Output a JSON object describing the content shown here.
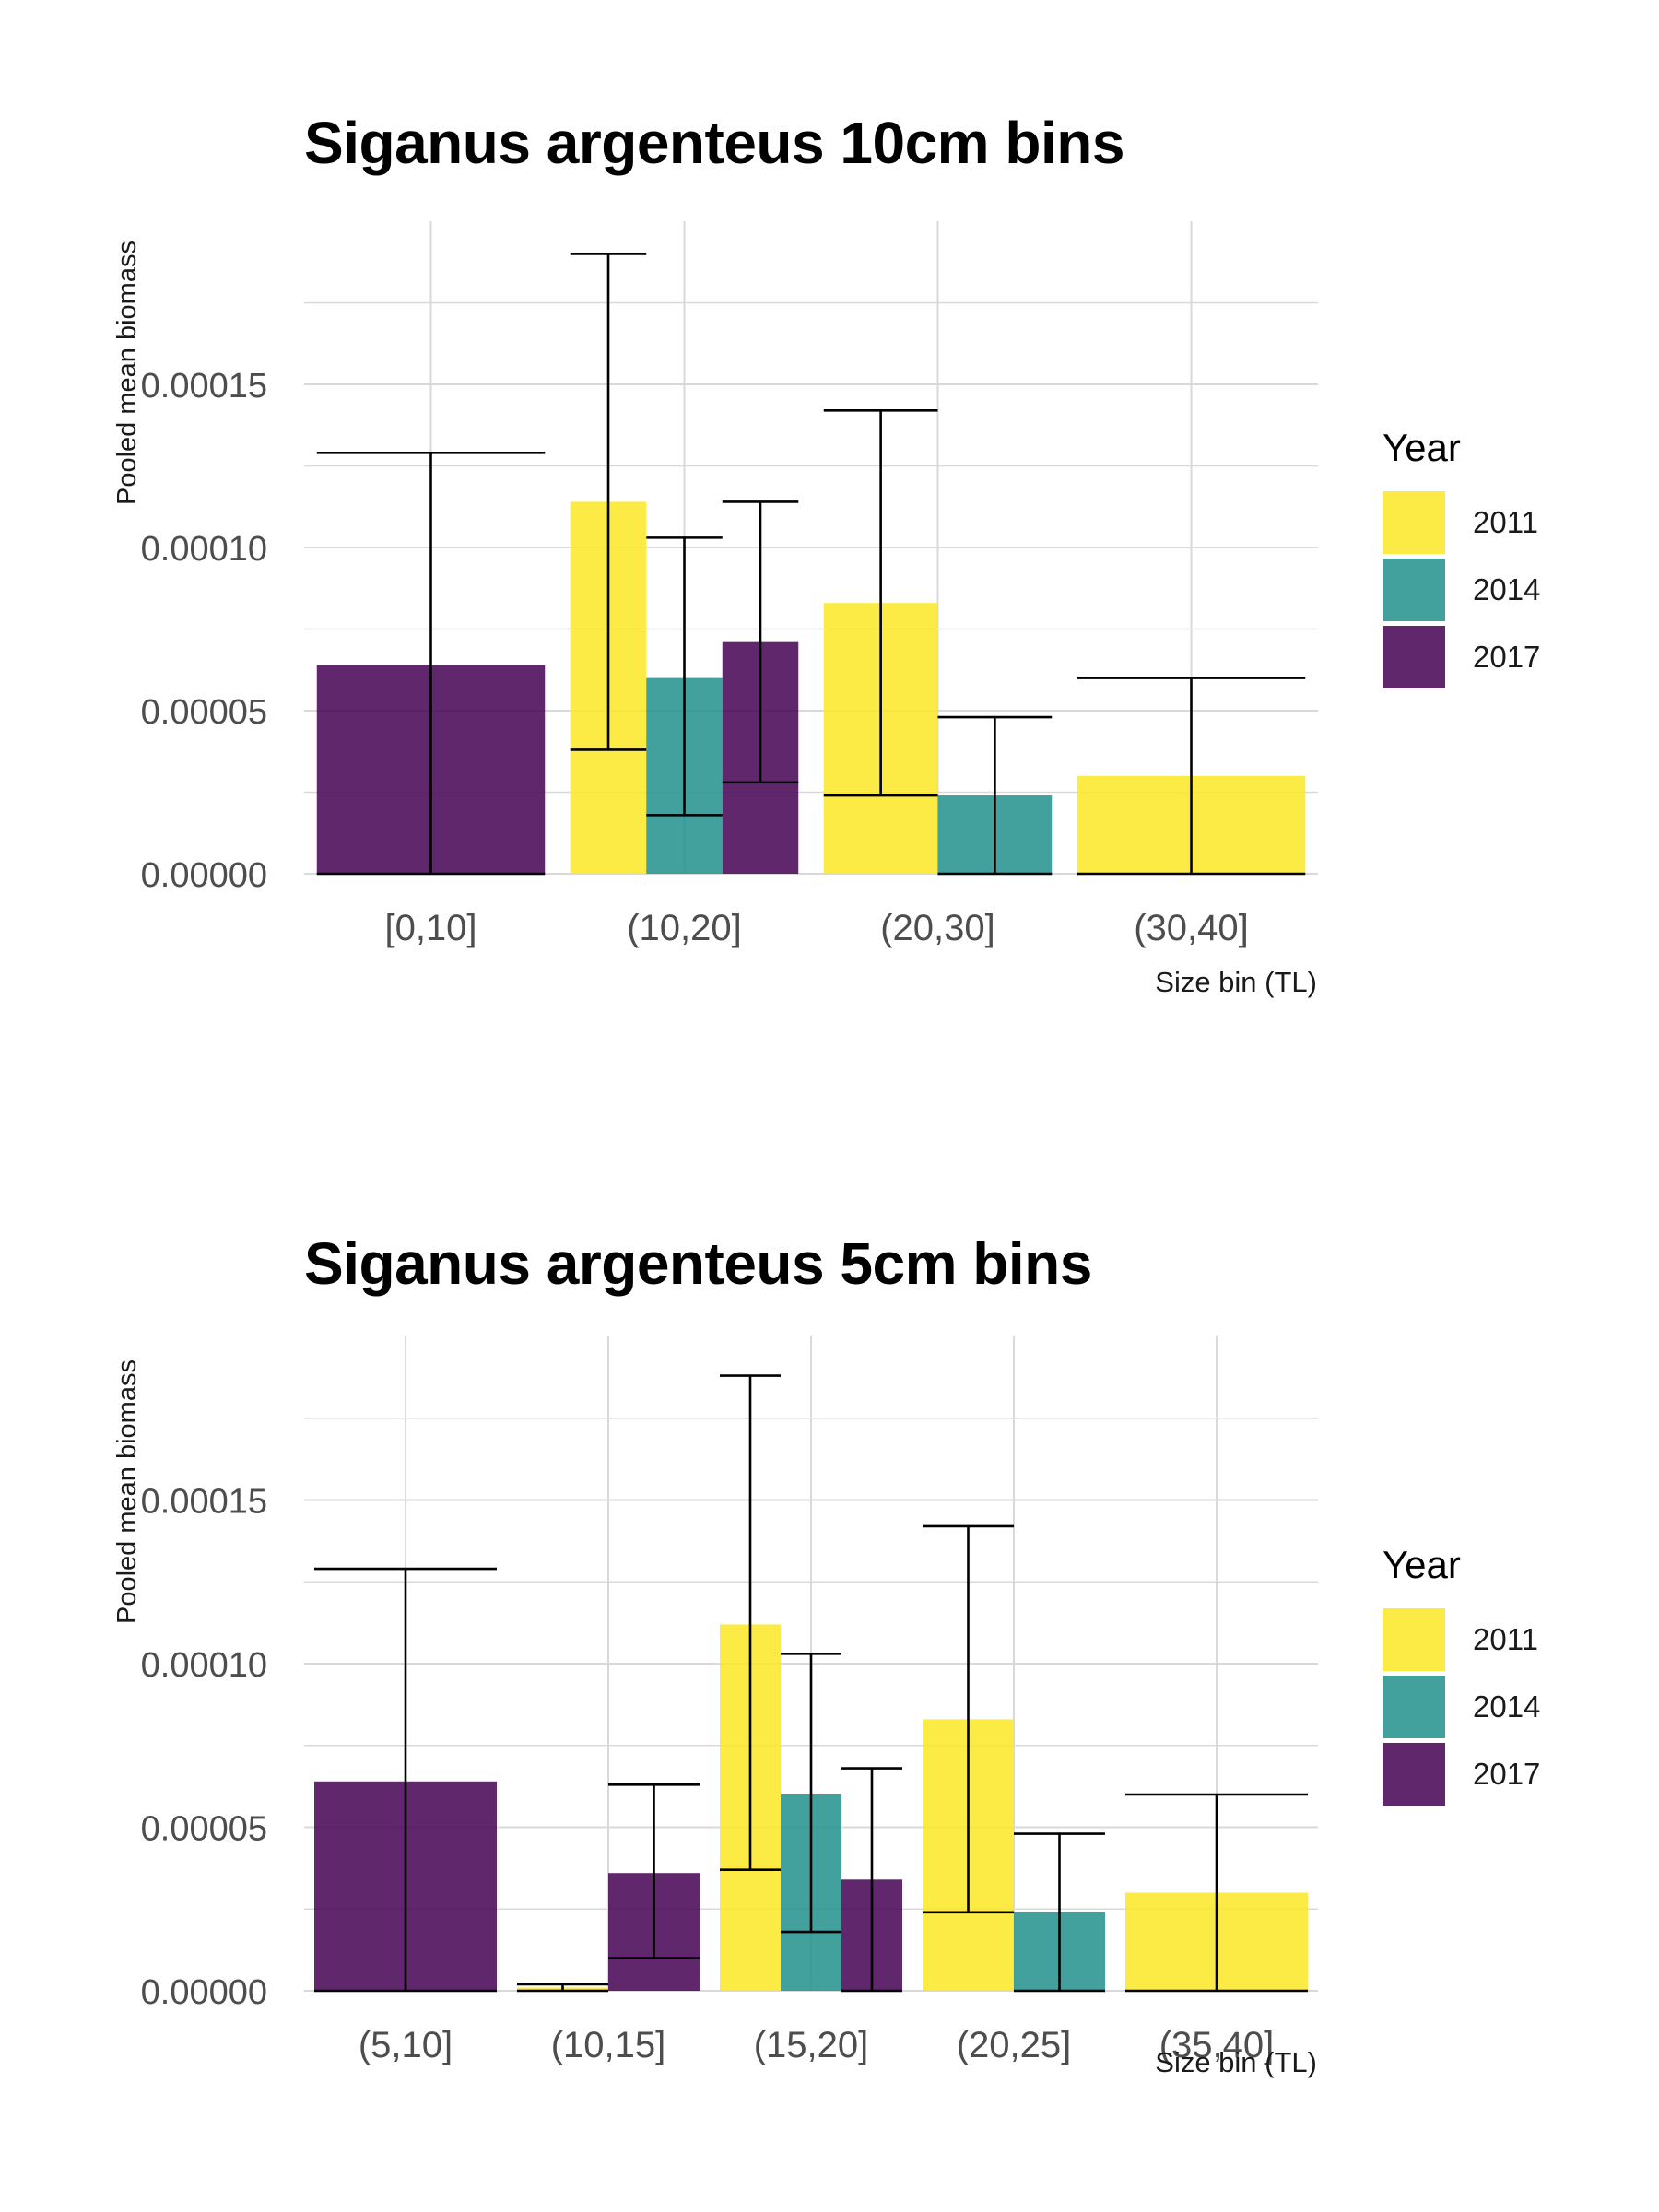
{
  "legend": {
    "title": "Year",
    "items": [
      {
        "label": "2011",
        "color": "#FDE725"
      },
      {
        "label": "2014",
        "color": "#21908C"
      },
      {
        "label": "2017",
        "color": "#440154"
      }
    ]
  },
  "chart_data": [
    {
      "type": "bar",
      "title": "Siganus argenteus 10cm bins",
      "xlabel": "Size bin (TL)",
      "ylabel": "Pooled mean biomass",
      "categories": [
        "[0,10]",
        "(10,20]",
        "(20,30]",
        "(30,40]"
      ],
      "ylim": [
        0,
        0.0002
      ],
      "yticks": [
        "0.00000",
        "0.00005",
        "0.00010",
        "0.00015"
      ],
      "grid": true,
      "legend_position": "right",
      "series": [
        {
          "name": "2011",
          "values": [
            null,
            0.000114,
            8.3e-05,
            3e-05
          ],
          "error_low": [
            null,
            3.8e-05,
            2.4e-05,
            0.0
          ],
          "error_high": [
            null,
            0.00019,
            0.000142,
            6e-05
          ]
        },
        {
          "name": "2014",
          "values": [
            null,
            6e-05,
            2.4e-05,
            null
          ],
          "error_low": [
            null,
            1.8e-05,
            0.0,
            null
          ],
          "error_high": [
            null,
            0.000103,
            4.8e-05,
            null
          ]
        },
        {
          "name": "2017",
          "values": [
            6.4e-05,
            7.1e-05,
            null,
            null
          ],
          "error_low": [
            0.0,
            2.8e-05,
            null,
            null
          ],
          "error_high": [
            0.000129,
            0.000114,
            null,
            null
          ]
        }
      ]
    },
    {
      "type": "bar",
      "title": "Siganus argenteus 5cm bins",
      "xlabel": "Size bin (TL)",
      "ylabel": "Pooled mean biomass",
      "categories": [
        "(5,10]",
        "(10,15]",
        "(15,20]",
        "(20,25]",
        "(35,40]"
      ],
      "ylim": [
        0,
        0.0002
      ],
      "yticks": [
        "0.00000",
        "0.00005",
        "0.00010",
        "0.00015"
      ],
      "grid": true,
      "legend_position": "right",
      "series": [
        {
          "name": "2011",
          "values": [
            null,
            1e-06,
            0.000112,
            8.3e-05,
            3e-05
          ],
          "error_low": [
            null,
            0.0,
            3.7e-05,
            2.4e-05,
            0.0
          ],
          "error_high": [
            null,
            2e-06,
            0.000188,
            0.000142,
            6e-05
          ]
        },
        {
          "name": "2014",
          "values": [
            null,
            null,
            6e-05,
            2.4e-05,
            null
          ],
          "error_low": [
            null,
            null,
            1.8e-05,
            0.0,
            null
          ],
          "error_high": [
            null,
            null,
            0.000103,
            4.8e-05,
            null
          ]
        },
        {
          "name": "2017",
          "values": [
            6.4e-05,
            3.6e-05,
            3.4e-05,
            null,
            null
          ],
          "error_low": [
            0.0,
            1e-05,
            0.0,
            null,
            null
          ],
          "error_high": [
            0.000129,
            6.3e-05,
            6.8e-05,
            null,
            null
          ]
        }
      ]
    }
  ]
}
